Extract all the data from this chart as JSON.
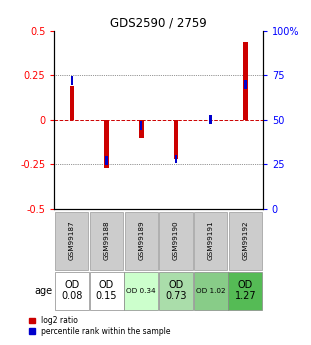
{
  "title": "GDS2590 / 2759",
  "samples": [
    "GSM99187",
    "GSM99188",
    "GSM99189",
    "GSM99190",
    "GSM99191",
    "GSM99192"
  ],
  "log2_ratios": [
    0.19,
    -0.27,
    -0.1,
    -0.22,
    0.0,
    0.44
  ],
  "percentile_ranks_scaled": [
    0.22,
    -0.23,
    -0.03,
    -0.22,
    0.0,
    0.2
  ],
  "age_values": [
    "OD\n0.08",
    "OD\n0.15",
    "OD 0.34",
    "OD\n0.73",
    "OD 1.02",
    "OD\n1.27"
  ],
  "age_fontsize_big": [
    true,
    true,
    false,
    true,
    false,
    true
  ],
  "cell_colors_age": [
    "#ffffff",
    "#ffffff",
    "#ccffcc",
    "#aaddaa",
    "#88cc88",
    "#55bb55"
  ],
  "ylim": [
    -0.5,
    0.5
  ],
  "yticks_left": [
    -0.5,
    -0.25,
    0.0,
    0.25,
    0.5
  ],
  "yticks_right": [
    0,
    25,
    50,
    75,
    100
  ],
  "bar_color_red": "#cc0000",
  "bar_color_blue": "#0000cc",
  "hline_color": "#cc0000",
  "dotted_color": "#333333",
  "legend_red": "log2 ratio",
  "legend_blue": "percentile rank within the sample"
}
